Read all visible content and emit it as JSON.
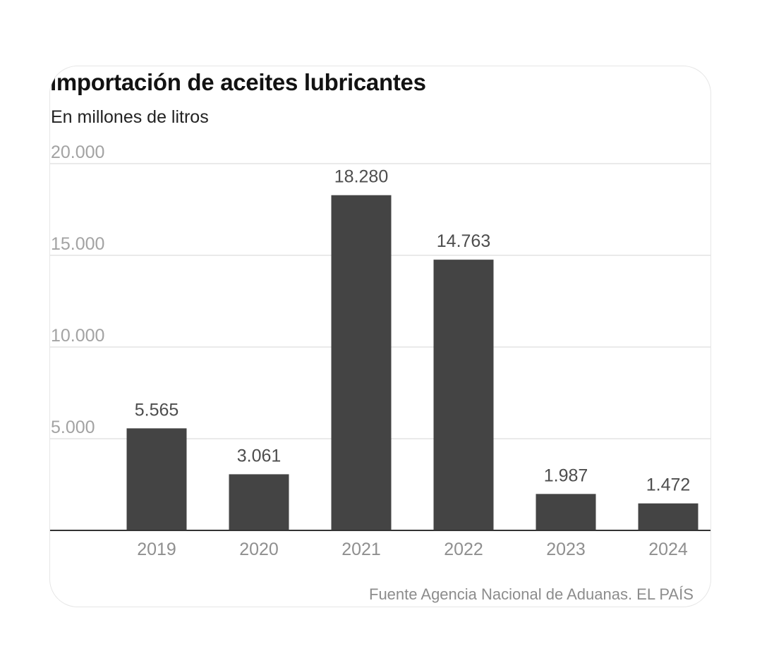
{
  "chart_data": {
    "type": "bar",
    "title": "Importación de aceites lubricantes",
    "subtitle": "En millones de litros",
    "categories": [
      "2019",
      "2020",
      "2021",
      "2022",
      "2023",
      "2024"
    ],
    "values": [
      5565,
      3061,
      18280,
      14763,
      1987,
      1472
    ],
    "value_labels": [
      "5.565",
      "3.061",
      "18.280",
      "14.763",
      "1.987",
      "1.472"
    ],
    "ylim": [
      0,
      20000
    ],
    "yticks": [
      5000,
      10000,
      15000,
      20000
    ],
    "ytick_labels": [
      "5.000",
      "10.000",
      "15.000",
      "20.000"
    ],
    "xlabel": "",
    "ylabel": "",
    "grid": true,
    "bar_color": "#444444",
    "source": "Fuente Agencia Nacional de Aduanas. EL PAÍS"
  }
}
